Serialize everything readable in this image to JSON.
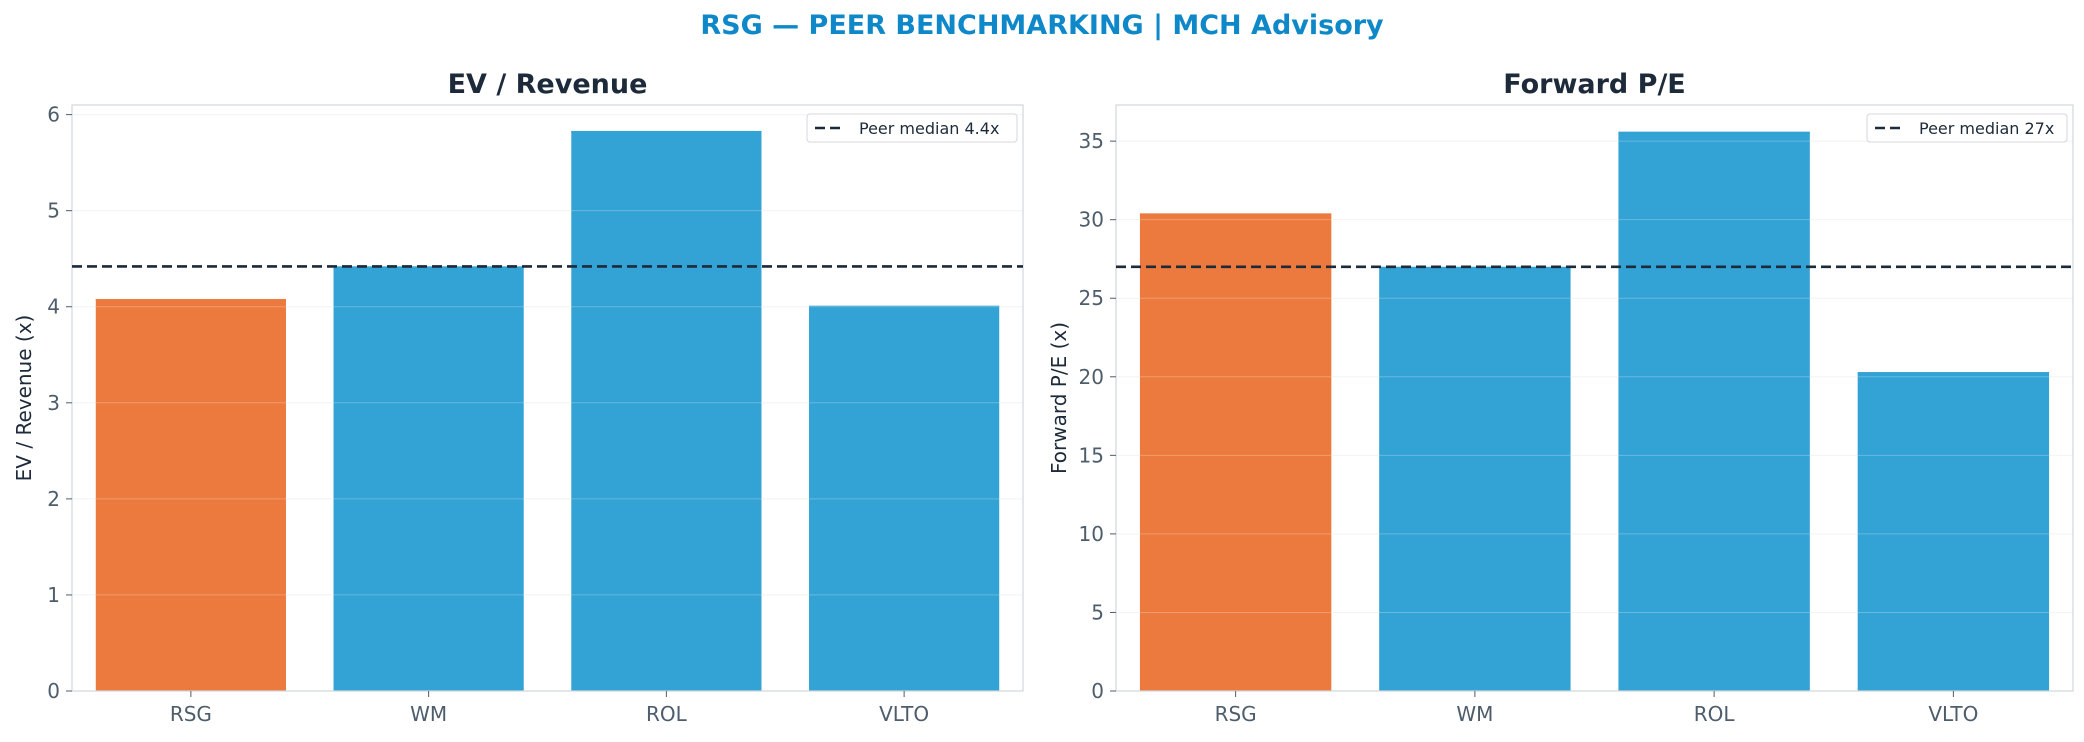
{
  "title": "RSG — PEER BENCHMARKING | MCH Advisory",
  "colors": {
    "title": "#0e88c8",
    "highlight": "#ec7a3e",
    "peer": "#33a2d4",
    "median": "#1c2a3a",
    "text": "#1c2a3a",
    "tick": "#4e5d6c"
  },
  "chart_data": [
    {
      "type": "bar",
      "title": "EV / Revenue",
      "ylabel": "EV / Revenue (x)",
      "xlabel": "",
      "categories": [
        "RSG",
        "WM",
        "ROL",
        "VLTO"
      ],
      "values": [
        4.08,
        4.42,
        5.83,
        4.01
      ],
      "highlight": "RSG",
      "ylim": [
        0,
        6.1
      ],
      "yticks": [
        0,
        1,
        2,
        3,
        4,
        5,
        6
      ],
      "reference_line": {
        "value": 4.42,
        "label": "Peer median 4.4x",
        "style": "dashed"
      },
      "legend": "top-right",
      "grid": true
    },
    {
      "type": "bar",
      "title": "Forward P/E",
      "ylabel": "Forward P/E (x)",
      "xlabel": "",
      "categories": [
        "RSG",
        "WM",
        "ROL",
        "VLTO"
      ],
      "values": [
        30.4,
        27.0,
        35.6,
        20.3
      ],
      "highlight": "RSG",
      "ylim": [
        0,
        37.3
      ],
      "yticks": [
        0,
        5,
        10,
        15,
        20,
        25,
        30,
        35
      ],
      "reference_line": {
        "value": 27.0,
        "label": "Peer median 27x",
        "style": "dashed"
      },
      "legend": "top-right",
      "grid": true
    }
  ]
}
